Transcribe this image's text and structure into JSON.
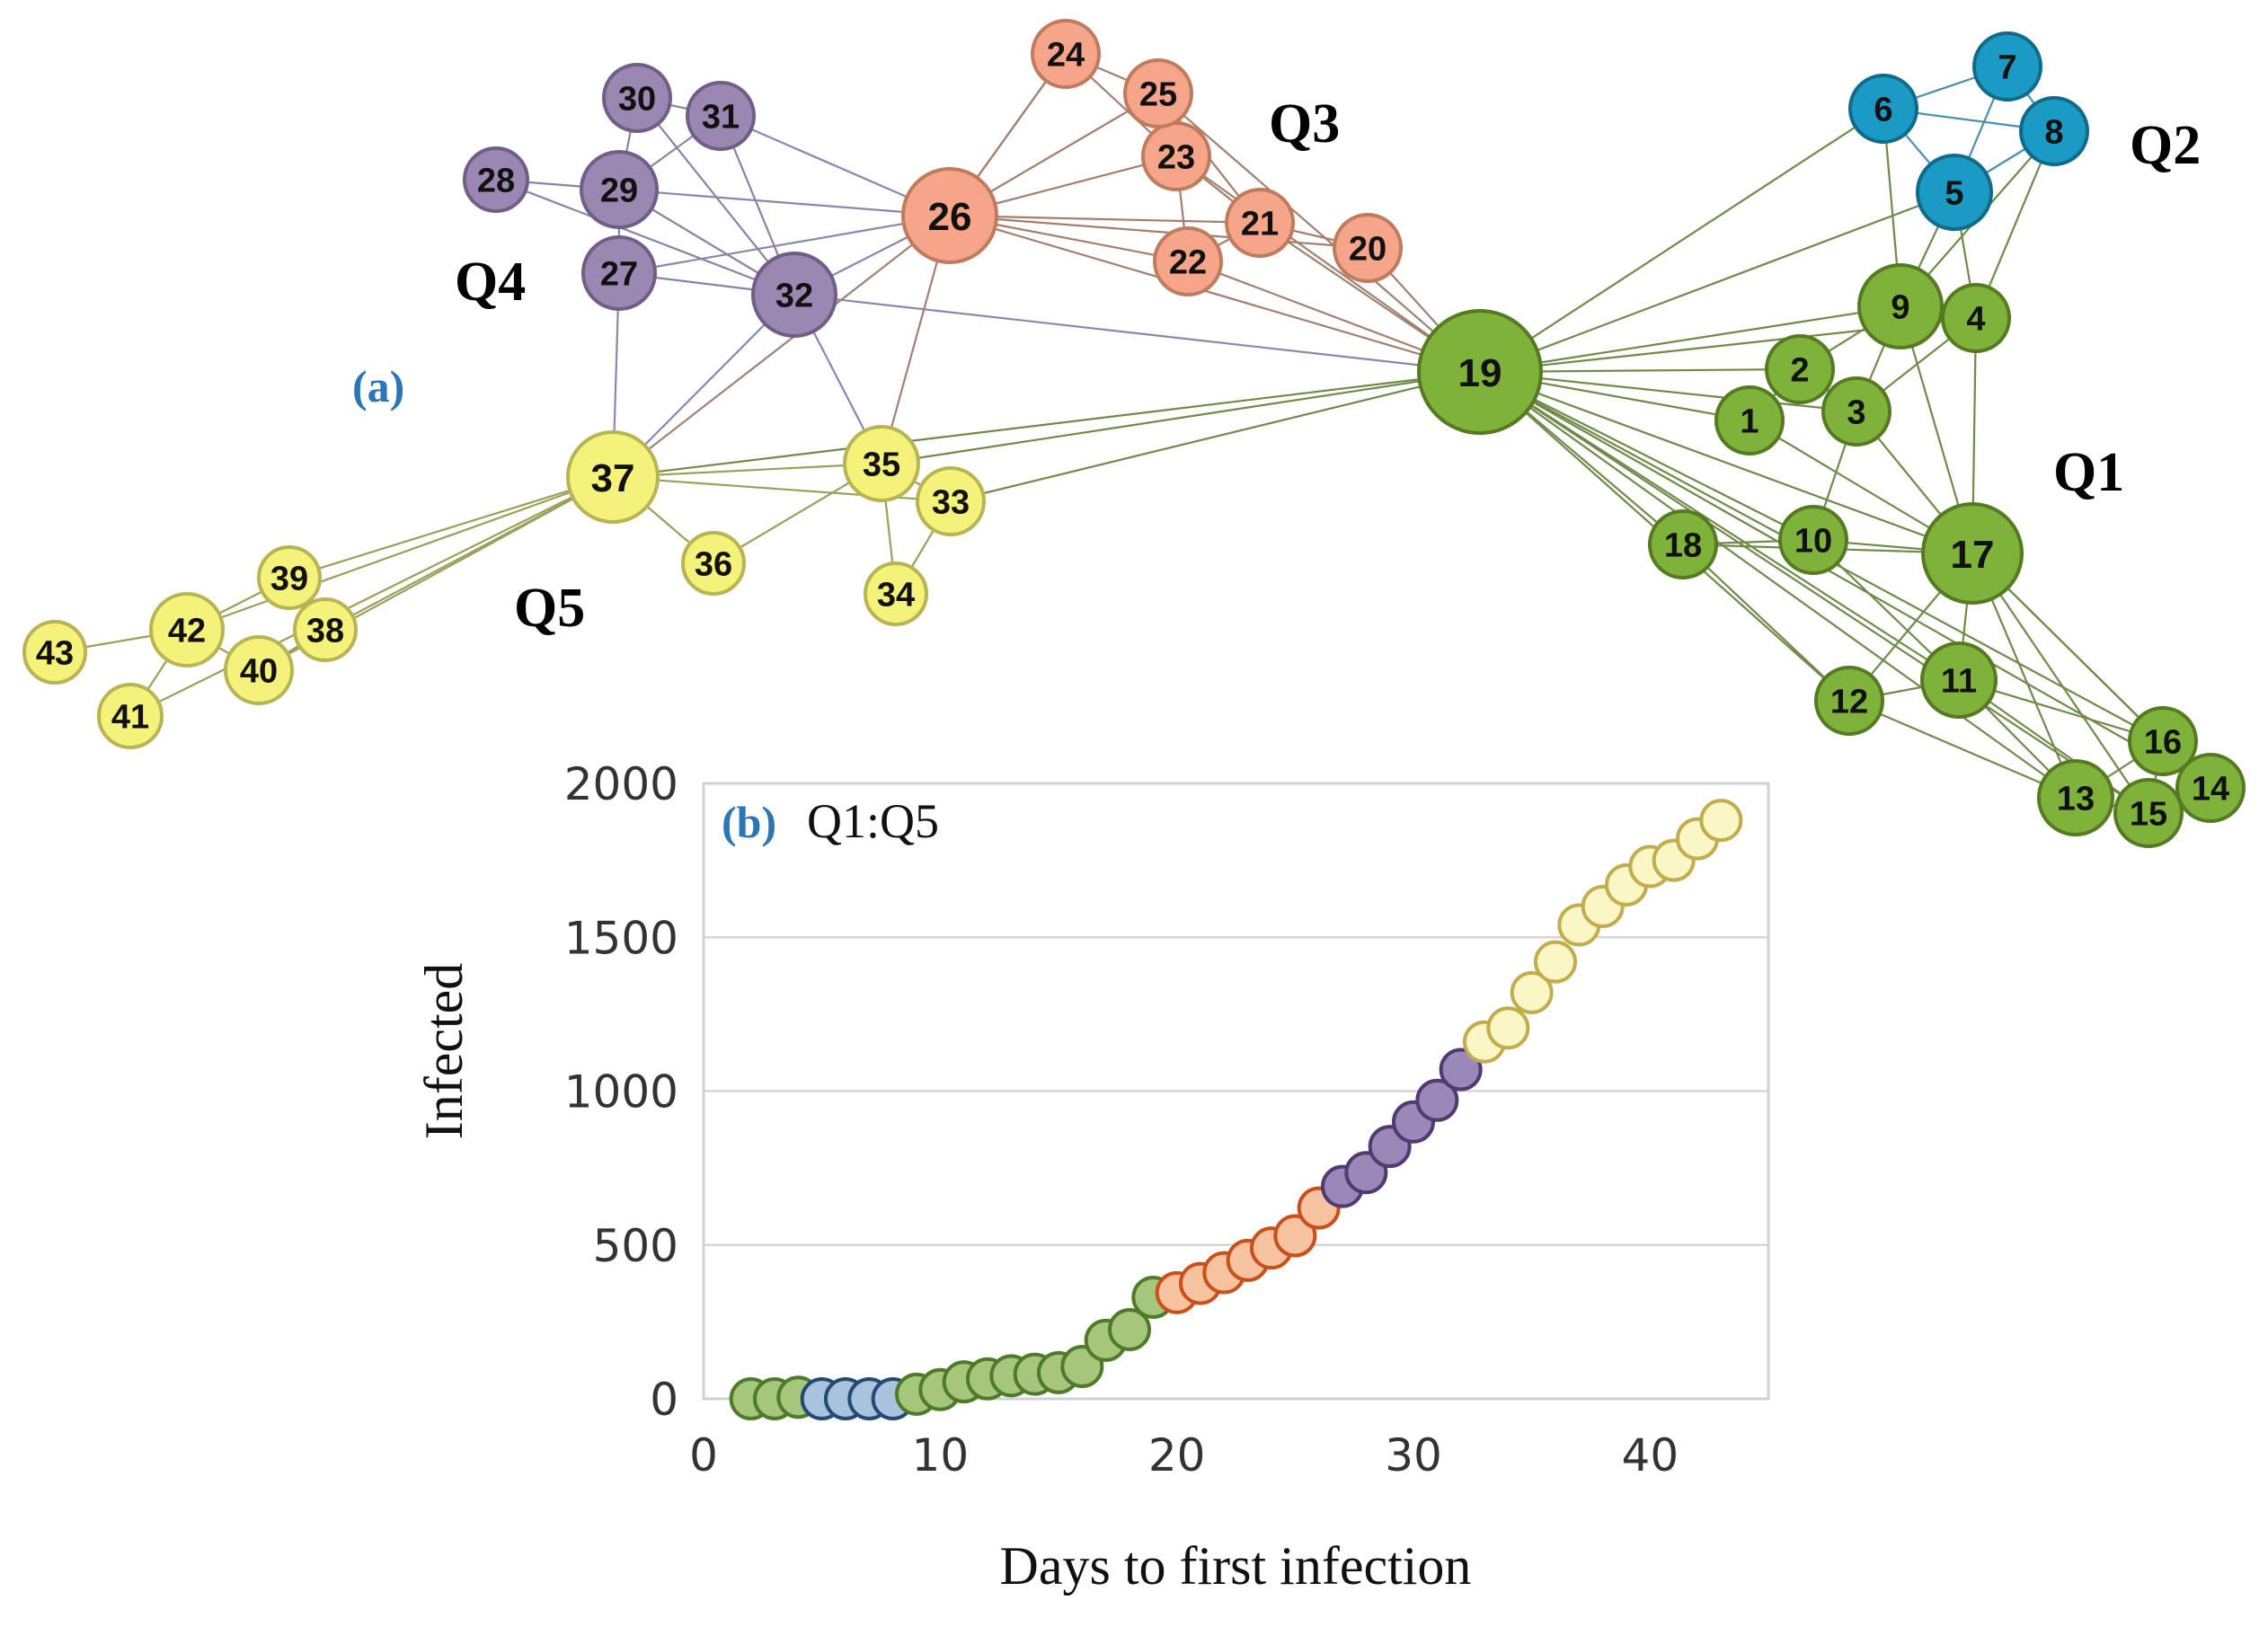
{
  "panel_a": {
    "label": "(a)",
    "label_color": "#2e75b6",
    "group_labels": [
      "Q1",
      "Q2",
      "Q3",
      "Q4",
      "Q5"
    ],
    "group_colors": {
      "Q1": {
        "fill": "#7fb23a",
        "stroke": "#557a22"
      },
      "Q2": {
        "fill": "#1b9ac4",
        "stroke": "#0f6a8c"
      },
      "Q3": {
        "fill": "#f4a58a",
        "stroke": "#c07a5c"
      },
      "Q4": {
        "fill": "#9b88b2",
        "stroke": "#6f5e86"
      },
      "Q5": {
        "fill": "#f4f27a",
        "stroke": "#b8b454"
      }
    },
    "nodes": [
      {
        "id": "1",
        "group": "Q1"
      },
      {
        "id": "2",
        "group": "Q1"
      },
      {
        "id": "3",
        "group": "Q1"
      },
      {
        "id": "4",
        "group": "Q1"
      },
      {
        "id": "9",
        "group": "Q1"
      },
      {
        "id": "10",
        "group": "Q1"
      },
      {
        "id": "11",
        "group": "Q1"
      },
      {
        "id": "12",
        "group": "Q1"
      },
      {
        "id": "13",
        "group": "Q1"
      },
      {
        "id": "14",
        "group": "Q1"
      },
      {
        "id": "15",
        "group": "Q1"
      },
      {
        "id": "16",
        "group": "Q1"
      },
      {
        "id": "17",
        "group": "Q1"
      },
      {
        "id": "18",
        "group": "Q1"
      },
      {
        "id": "19",
        "group": "Q1"
      },
      {
        "id": "5",
        "group": "Q2"
      },
      {
        "id": "6",
        "group": "Q2"
      },
      {
        "id": "7",
        "group": "Q2"
      },
      {
        "id": "8",
        "group": "Q2"
      },
      {
        "id": "20",
        "group": "Q3"
      },
      {
        "id": "21",
        "group": "Q3"
      },
      {
        "id": "22",
        "group": "Q3"
      },
      {
        "id": "23",
        "group": "Q3"
      },
      {
        "id": "24",
        "group": "Q3"
      },
      {
        "id": "25",
        "group": "Q3"
      },
      {
        "id": "26",
        "group": "Q3"
      },
      {
        "id": "27",
        "group": "Q4"
      },
      {
        "id": "28",
        "group": "Q4"
      },
      {
        "id": "29",
        "group": "Q4"
      },
      {
        "id": "30",
        "group": "Q4"
      },
      {
        "id": "31",
        "group": "Q4"
      },
      {
        "id": "32",
        "group": "Q4"
      },
      {
        "id": "33",
        "group": "Q5"
      },
      {
        "id": "34",
        "group": "Q5"
      },
      {
        "id": "35",
        "group": "Q5"
      },
      {
        "id": "36",
        "group": "Q5"
      },
      {
        "id": "37",
        "group": "Q5"
      },
      {
        "id": "38",
        "group": "Q5"
      },
      {
        "id": "39",
        "group": "Q5"
      },
      {
        "id": "40",
        "group": "Q5"
      },
      {
        "id": "41",
        "group": "Q5"
      },
      {
        "id": "42",
        "group": "Q5"
      },
      {
        "id": "43",
        "group": "Q5"
      }
    ],
    "edges": [
      [
        "19",
        "6"
      ],
      [
        "19",
        "5"
      ],
      [
        "19",
        "9"
      ],
      [
        "19",
        "4"
      ],
      [
        "19",
        "2"
      ],
      [
        "19",
        "3"
      ],
      [
        "19",
        "1"
      ],
      [
        "19",
        "10"
      ],
      [
        "19",
        "17"
      ],
      [
        "19",
        "18"
      ],
      [
        "19",
        "11"
      ],
      [
        "19",
        "12"
      ],
      [
        "19",
        "13"
      ],
      [
        "19",
        "15"
      ],
      [
        "19",
        "16"
      ],
      [
        "19",
        "14"
      ],
      [
        "19",
        "26"
      ],
      [
        "19",
        "20"
      ],
      [
        "19",
        "21"
      ],
      [
        "19",
        "22"
      ],
      [
        "19",
        "23"
      ],
      [
        "19",
        "25"
      ],
      [
        "19",
        "32"
      ],
      [
        "19",
        "37"
      ],
      [
        "19",
        "35"
      ],
      [
        "19",
        "33"
      ],
      [
        "6",
        "7"
      ],
      [
        "6",
        "8"
      ],
      [
        "6",
        "5"
      ],
      [
        "7",
        "8"
      ],
      [
        "7",
        "5"
      ],
      [
        "8",
        "5"
      ],
      [
        "8",
        "4"
      ],
      [
        "8",
        "9"
      ],
      [
        "5",
        "9"
      ],
      [
        "5",
        "4"
      ],
      [
        "6",
        "9"
      ],
      [
        "9",
        "4"
      ],
      [
        "9",
        "2"
      ],
      [
        "9",
        "3"
      ],
      [
        "9",
        "17"
      ],
      [
        "4",
        "3"
      ],
      [
        "4",
        "17"
      ],
      [
        "2",
        "3"
      ],
      [
        "2",
        "1"
      ],
      [
        "3",
        "10"
      ],
      [
        "3",
        "17"
      ],
      [
        "1",
        "17"
      ],
      [
        "10",
        "17"
      ],
      [
        "10",
        "18"
      ],
      [
        "18",
        "17"
      ],
      [
        "18",
        "12"
      ],
      [
        "17",
        "11"
      ],
      [
        "17",
        "12"
      ],
      [
        "17",
        "13"
      ],
      [
        "17",
        "15"
      ],
      [
        "17",
        "16"
      ],
      [
        "17",
        "14"
      ],
      [
        "11",
        "12"
      ],
      [
        "11",
        "13"
      ],
      [
        "11",
        "15"
      ],
      [
        "11",
        "16"
      ],
      [
        "11",
        "10"
      ],
      [
        "13",
        "15"
      ],
      [
        "13",
        "16"
      ],
      [
        "15",
        "16"
      ],
      [
        "15",
        "14"
      ],
      [
        "16",
        "14"
      ],
      [
        "12",
        "13"
      ],
      [
        "24",
        "25"
      ],
      [
        "24",
        "26"
      ],
      [
        "25",
        "23"
      ],
      [
        "25",
        "21"
      ],
      [
        "23",
        "26"
      ],
      [
        "23",
        "21"
      ],
      [
        "23",
        "22"
      ],
      [
        "21",
        "22"
      ],
      [
        "21",
        "26"
      ],
      [
        "21",
        "20"
      ],
      [
        "22",
        "26"
      ],
      [
        "26",
        "20"
      ],
      [
        "26",
        "25"
      ],
      [
        "26",
        "24"
      ],
      [
        "24",
        "23"
      ],
      [
        "26",
        "29"
      ],
      [
        "26",
        "31"
      ],
      [
        "26",
        "27"
      ],
      [
        "26",
        "32"
      ],
      [
        "26",
        "35"
      ],
      [
        "26",
        "37"
      ],
      [
        "30",
        "31"
      ],
      [
        "30",
        "29"
      ],
      [
        "31",
        "29"
      ],
      [
        "31",
        "32"
      ],
      [
        "28",
        "29"
      ],
      [
        "28",
        "32"
      ],
      [
        "29",
        "27"
      ],
      [
        "29",
        "32"
      ],
      [
        "27",
        "32"
      ],
      [
        "27",
        "37"
      ],
      [
        "30",
        "32"
      ],
      [
        "32",
        "37"
      ],
      [
        "32",
        "35"
      ],
      [
        "37",
        "35"
      ],
      [
        "37",
        "33"
      ],
      [
        "37",
        "36"
      ],
      [
        "35",
        "33"
      ],
      [
        "35",
        "36"
      ],
      [
        "35",
        "34"
      ],
      [
        "33",
        "34"
      ],
      [
        "37",
        "39"
      ],
      [
        "37",
        "38"
      ],
      [
        "37",
        "42"
      ],
      [
        "37",
        "40"
      ],
      [
        "37",
        "41"
      ],
      [
        "39",
        "38"
      ],
      [
        "39",
        "42"
      ],
      [
        "42",
        "40"
      ],
      [
        "42",
        "43"
      ],
      [
        "42",
        "41"
      ],
      [
        "40",
        "38"
      ]
    ]
  },
  "panel_b": {
    "label": "(b)",
    "label_color": "#2e75b6",
    "legend": "Q1:Q5"
  },
  "chart_data": {
    "type": "scatter",
    "title": "",
    "xlabel": "Days to first infection",
    "ylabel": "Infected",
    "xlim": [
      0,
      45
    ],
    "ylim": [
      0,
      2000
    ],
    "xticks": [
      0,
      10,
      20,
      30,
      40
    ],
    "yticks": [
      0,
      500,
      1000,
      1500,
      2000
    ],
    "grid": "horizontal",
    "series": [
      {
        "name": "Q1",
        "fill": "#a6c67a",
        "stroke": "#4e7a2a",
        "points": [
          [
            2,
            0
          ],
          [
            3,
            0
          ],
          [
            4,
            5
          ]
        ]
      },
      {
        "name": "Q2",
        "fill": "#a9c3dc",
        "stroke": "#234a72",
        "points": [
          [
            5,
            0
          ],
          [
            6,
            0
          ],
          [
            7,
            0
          ],
          [
            8,
            0
          ]
        ]
      },
      {
        "name": "Q1",
        "fill": "#a6c67a",
        "stroke": "#4e7a2a",
        "points": [
          [
            9,
            15
          ],
          [
            10,
            30
          ],
          [
            11,
            55
          ],
          [
            12,
            65
          ],
          [
            13,
            75
          ],
          [
            14,
            80
          ],
          [
            15,
            85
          ],
          [
            16,
            105
          ],
          [
            17,
            190
          ],
          [
            18,
            225
          ],
          [
            19,
            330
          ]
        ]
      },
      {
        "name": "Q3",
        "fill": "#f7c2a0",
        "stroke": "#c8501a",
        "points": [
          [
            20,
            345
          ],
          [
            21,
            375
          ],
          [
            22,
            410
          ],
          [
            23,
            450
          ],
          [
            24,
            490
          ],
          [
            25,
            530
          ],
          [
            26,
            620
          ]
        ]
      },
      {
        "name": "Q4",
        "fill": "#9b88b8",
        "stroke": "#503a72",
        "points": [
          [
            27,
            690
          ],
          [
            28,
            735
          ],
          [
            29,
            820
          ],
          [
            30,
            900
          ],
          [
            31,
            970
          ],
          [
            32,
            1070
          ]
        ]
      },
      {
        "name": "Q5",
        "fill": "#fbf6c6",
        "stroke": "#c2ad4e",
        "points": [
          [
            33,
            1160
          ],
          [
            34,
            1205
          ],
          [
            35,
            1320
          ],
          [
            36,
            1420
          ],
          [
            37,
            1540
          ],
          [
            38,
            1600
          ],
          [
            39,
            1670
          ],
          [
            40,
            1730
          ],
          [
            41,
            1750
          ],
          [
            42,
            1820
          ],
          [
            43,
            1880
          ]
        ]
      }
    ]
  }
}
